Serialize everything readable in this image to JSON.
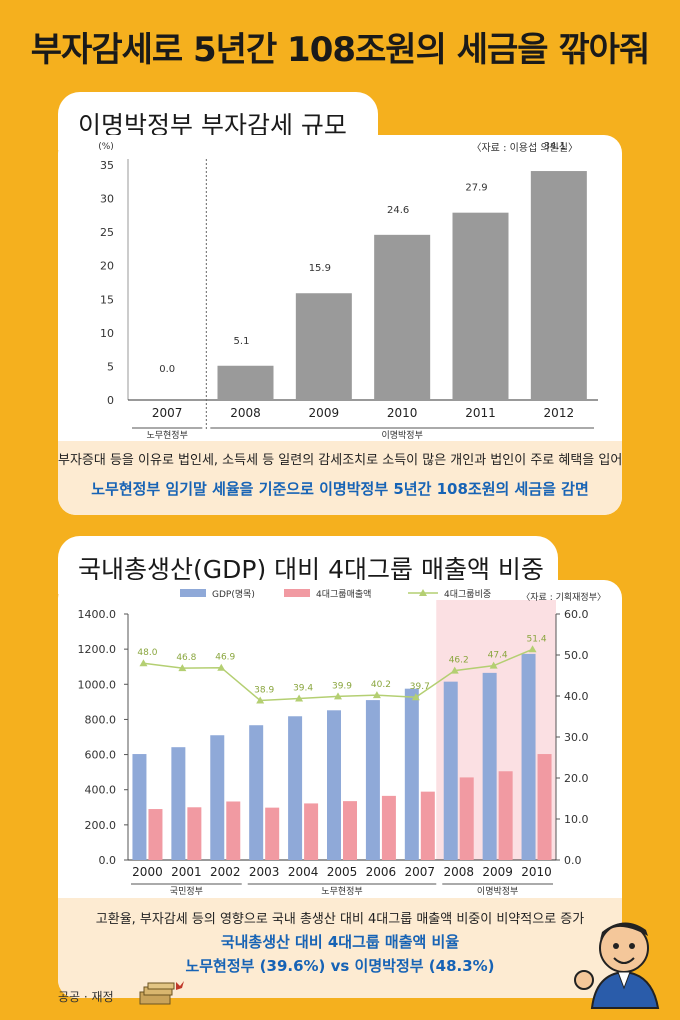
{
  "title": "부자감세로 5년간 108조원의 세금을 깎아줘",
  "chart_data": [
    {
      "type": "bar",
      "title": "이명박정부 부자감세 규모",
      "source": "〈자료 : 이용섭 의원실〉",
      "ylabel": "(%)",
      "ylim": [
        0,
        35
      ],
      "yticks": [
        "0",
        "5",
        "10",
        "15",
        "20",
        "25",
        "30",
        "35"
      ],
      "categories": [
        "2007",
        "2008",
        "2009",
        "2010",
        "2011",
        "2012"
      ],
      "values": [
        0.0,
        5.1,
        15.9,
        24.6,
        27.9,
        34.1
      ],
      "value_labels": [
        "0.0",
        "5.1",
        "15.9",
        "24.6",
        "27.9",
        "34.1"
      ],
      "periods": [
        {
          "label": "노무현정부",
          "from": "2007",
          "to": "2007"
        },
        {
          "label": "이명박정부",
          "from": "2008",
          "to": "2012"
        }
      ],
      "bar_color": "#9a9a9a"
    },
    {
      "type": "bar",
      "title": "국내총생산(GDP) 대비 4대그룹 매출액 비중",
      "source": "〈자료 : 기획재정부〉",
      "categories": [
        "2000",
        "2001",
        "2002",
        "2003",
        "2004",
        "2005",
        "2006",
        "2007",
        "2008",
        "2009",
        "2010"
      ],
      "ylim_left": [
        0,
        1400
      ],
      "yticks_left": [
        "0.0",
        "200.0",
        "400.0",
        "600.0",
        "800.0",
        "1000.0",
        "1200.0",
        "1400.0"
      ],
      "ylim_right": [
        0,
        60
      ],
      "yticks_right": [
        "0.0",
        "10.0",
        "20.0",
        "30.0",
        "40.0",
        "50.0",
        "60.0"
      ],
      "series": [
        {
          "name": "GDP(명목)",
          "type": "bar",
          "axis": "left",
          "color": "#8fa9d8",
          "values": [
            603,
            642,
            710,
            767,
            818,
            852,
            910,
            975,
            1015,
            1065,
            1173
          ]
        },
        {
          "name": "4대그룹매출액",
          "type": "bar",
          "axis": "left",
          "color": "#f19aa2",
          "values": [
            290,
            300,
            333,
            298,
            322,
            335,
            365,
            389,
            470,
            505,
            603
          ]
        },
        {
          "name": "4대그룹비중",
          "type": "line",
          "axis": "right",
          "color": "#b4cf72",
          "values": [
            48.0,
            46.8,
            46.9,
            38.9,
            39.4,
            39.9,
            40.2,
            39.7,
            46.2,
            47.4,
            51.4
          ],
          "labels": [
            "48.0",
            "46.8",
            "46.9",
            "38.9",
            "39.4",
            "39.9",
            "40.2",
            "39.7",
            "46.2",
            "47.4",
            "51.4"
          ]
        }
      ],
      "periods": [
        {
          "label": "국민정부",
          "from": "2000",
          "to": "2002"
        },
        {
          "label": "노무현정부",
          "from": "2003",
          "to": "2007"
        },
        {
          "label": "이명박정부",
          "from": "2008",
          "to": "2010"
        }
      ],
      "highlight_color": "#fbe0e3"
    }
  ],
  "caption1": {
    "line": "부자증대 등을 이유로 법인세, 소득세 등 일련의 감세조치로 소득이 많은 개인과 법인이 주로 혜택을 입어",
    "highlight": "노무현정부 임기말 세율을 기준으로 이명박정부 5년간 108조원의 세금을 감면"
  },
  "caption2": {
    "line": "고환율, 부자감세 등의 영향으로 국내 총생산 대비 4대그룹 매출액 비중이 비약적으로 증가",
    "highlight1": "국내총생산 대비 4대그룹 매출액 비율",
    "highlight2": "노무현정부 (39.6%) vs 이명박정부 (48.3%)"
  },
  "footer": "공공 · 재정"
}
